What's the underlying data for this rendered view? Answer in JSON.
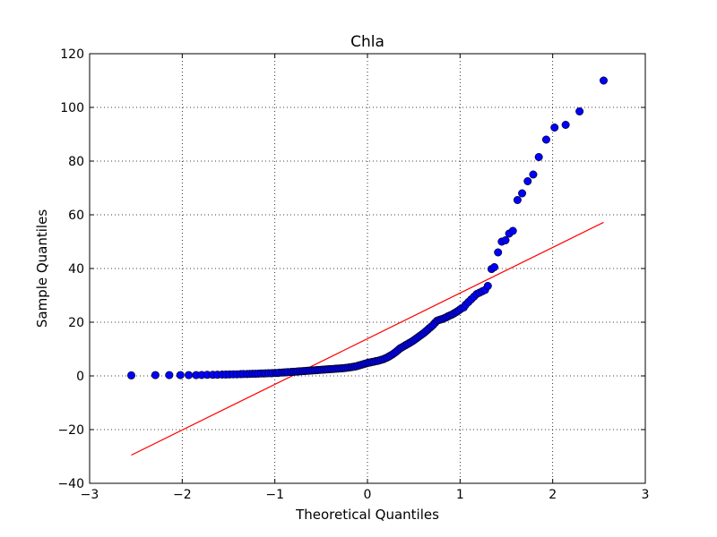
{
  "chart_data": {
    "type": "scatter",
    "title": "Chla",
    "xlabel": "Theoretical Quantiles",
    "ylabel": "Sample Quantiles",
    "xlim": [
      -3,
      3
    ],
    "ylim": [
      -40,
      120
    ],
    "xticks": [
      -3,
      -2,
      -1,
      0,
      1,
      2,
      3
    ],
    "yticks": [
      -40,
      -20,
      0,
      20,
      40,
      60,
      80,
      100,
      120
    ],
    "xtick_labels": [
      "−3",
      "−2",
      "−1",
      "0",
      "1",
      "2",
      "3"
    ],
    "ytick_labels": [
      "−40",
      "−20",
      "0",
      "20",
      "40",
      "60",
      "80",
      "100",
      "120"
    ],
    "grid": true,
    "grid_style": "dotted",
    "colors": {
      "points": "#0000ff",
      "point_edge": "#000000",
      "line": "#ff0000"
    },
    "reference_line": {
      "x": [
        -2.55,
        2.55
      ],
      "y": [
        -29.5,
        57.2
      ]
    },
    "series": [
      {
        "points": [
          [
            -2.55,
            0.2
          ],
          [
            -2.29,
            0.3
          ],
          [
            -2.14,
            0.3
          ],
          [
            -2.02,
            0.3
          ],
          [
            -1.93,
            0.3
          ],
          [
            -1.85,
            0.3
          ],
          [
            -1.79,
            0.35
          ],
          [
            -1.73,
            0.4
          ],
          [
            -1.67,
            0.4
          ],
          [
            -1.62,
            0.45
          ],
          [
            -1.57,
            0.5
          ],
          [
            -1.53,
            0.5
          ],
          [
            -1.49,
            0.55
          ],
          [
            -1.45,
            0.6
          ],
          [
            -1.41,
            0.6
          ],
          [
            -1.37,
            0.65
          ],
          [
            -1.34,
            0.7
          ],
          [
            -1.3,
            0.7
          ],
          [
            -1.27,
            0.75
          ],
          [
            -1.24,
            0.8
          ],
          [
            -1.21,
            0.8
          ],
          [
            -1.18,
            0.85
          ],
          [
            -1.15,
            0.9
          ],
          [
            -1.12,
            0.9
          ],
          [
            -1.1,
            0.95
          ],
          [
            -1.07,
            1.0
          ],
          [
            -1.04,
            1.0
          ],
          [
            -1.02,
            1.05
          ],
          [
            -0.99,
            1.1
          ],
          [
            -0.97,
            1.1
          ],
          [
            -0.95,
            1.2
          ],
          [
            -0.92,
            1.25
          ],
          [
            -0.9,
            1.3
          ],
          [
            -0.88,
            1.35
          ],
          [
            -0.86,
            1.4
          ],
          [
            -0.83,
            1.45
          ],
          [
            -0.81,
            1.5
          ],
          [
            -0.79,
            1.55
          ],
          [
            -0.77,
            1.6
          ],
          [
            -0.75,
            1.65
          ],
          [
            -0.73,
            1.7
          ],
          [
            -0.71,
            1.75
          ],
          [
            -0.69,
            1.8
          ],
          [
            -0.67,
            1.85
          ],
          [
            -0.65,
            1.9
          ],
          [
            -0.63,
            1.95
          ],
          [
            -0.61,
            2.0
          ],
          [
            -0.59,
            2.05
          ],
          [
            -0.57,
            2.1
          ],
          [
            -0.55,
            2.15
          ],
          [
            -0.53,
            2.2
          ],
          [
            -0.51,
            2.25
          ],
          [
            -0.49,
            2.3
          ],
          [
            -0.47,
            2.35
          ],
          [
            -0.45,
            2.4
          ],
          [
            -0.43,
            2.45
          ],
          [
            -0.41,
            2.5
          ],
          [
            -0.39,
            2.55
          ],
          [
            -0.37,
            2.6
          ],
          [
            -0.35,
            2.65
          ],
          [
            -0.33,
            2.7
          ],
          [
            -0.31,
            2.75
          ],
          [
            -0.29,
            2.8
          ],
          [
            -0.27,
            2.85
          ],
          [
            -0.25,
            2.9
          ],
          [
            -0.23,
            3.0
          ],
          [
            -0.21,
            3.1
          ],
          [
            -0.19,
            3.2
          ],
          [
            -0.17,
            3.3
          ],
          [
            -0.15,
            3.4
          ],
          [
            -0.13,
            3.5
          ],
          [
            -0.11,
            3.7
          ],
          [
            -0.09,
            3.9
          ],
          [
            -0.07,
            4.1
          ],
          [
            -0.05,
            4.3
          ],
          [
            -0.03,
            4.5
          ],
          [
            -0.01,
            4.7
          ],
          [
            0.01,
            4.9
          ],
          [
            0.03,
            5.0
          ],
          [
            0.05,
            5.2
          ],
          [
            0.07,
            5.3
          ],
          [
            0.09,
            5.5
          ],
          [
            0.11,
            5.6
          ],
          [
            0.13,
            5.8
          ],
          [
            0.15,
            6.0
          ],
          [
            0.17,
            6.2
          ],
          [
            0.19,
            6.5
          ],
          [
            0.21,
            6.8
          ],
          [
            0.23,
            7.2
          ],
          [
            0.25,
            7.6
          ],
          [
            0.27,
            8.0
          ],
          [
            0.29,
            8.5
          ],
          [
            0.31,
            9.0
          ],
          [
            0.33,
            9.6
          ],
          [
            0.35,
            10.2
          ],
          [
            0.37,
            10.6
          ],
          [
            0.39,
            11.0
          ],
          [
            0.41,
            11.4
          ],
          [
            0.43,
            11.8
          ],
          [
            0.45,
            12.2
          ],
          [
            0.47,
            12.6
          ],
          [
            0.49,
            13.0
          ],
          [
            0.51,
            13.5
          ],
          [
            0.53,
            14.0
          ],
          [
            0.55,
            14.5
          ],
          [
            0.57,
            15.0
          ],
          [
            0.59,
            15.5
          ],
          [
            0.61,
            16.0
          ],
          [
            0.63,
            16.6
          ],
          [
            0.65,
            17.2
          ],
          [
            0.67,
            17.8
          ],
          [
            0.69,
            18.4
          ],
          [
            0.71,
            19.0
          ],
          [
            0.73,
            19.8
          ],
          [
            0.75,
            20.5
          ],
          [
            0.77,
            20.8
          ],
          [
            0.79,
            21.0
          ],
          [
            0.81,
            21.2
          ],
          [
            0.83,
            21.5
          ],
          [
            0.85,
            21.8
          ],
          [
            0.87,
            22.2
          ],
          [
            0.89,
            22.5
          ],
          [
            0.91,
            22.8
          ],
          [
            0.93,
            23.2
          ],
          [
            0.95,
            23.6
          ],
          [
            0.97,
            24.0
          ],
          [
            0.99,
            24.5
          ],
          [
            1.01,
            25.0
          ],
          [
            1.04,
            25.5
          ],
          [
            1.06,
            26.5
          ],
          [
            1.09,
            27.5
          ],
          [
            1.12,
            28.5
          ],
          [
            1.15,
            29.5
          ],
          [
            1.18,
            30.5
          ],
          [
            1.21,
            31.0
          ],
          [
            1.24,
            31.5
          ],
          [
            1.27,
            32.0
          ],
          [
            1.3,
            33.5
          ],
          [
            1.34,
            39.8
          ],
          [
            1.37,
            40.5
          ],
          [
            1.41,
            46.0
          ],
          [
            1.45,
            50.0
          ],
          [
            1.49,
            50.5
          ],
          [
            1.53,
            53.0
          ],
          [
            1.57,
            54.0
          ],
          [
            1.62,
            65.5
          ],
          [
            1.67,
            68.0
          ],
          [
            1.73,
            72.5
          ],
          [
            1.79,
            75.0
          ],
          [
            1.85,
            81.5
          ],
          [
            1.93,
            88.0
          ],
          [
            2.02,
            92.5
          ],
          [
            2.14,
            93.5
          ],
          [
            2.29,
            98.5
          ],
          [
            2.55,
            110.0
          ]
        ]
      }
    ]
  }
}
